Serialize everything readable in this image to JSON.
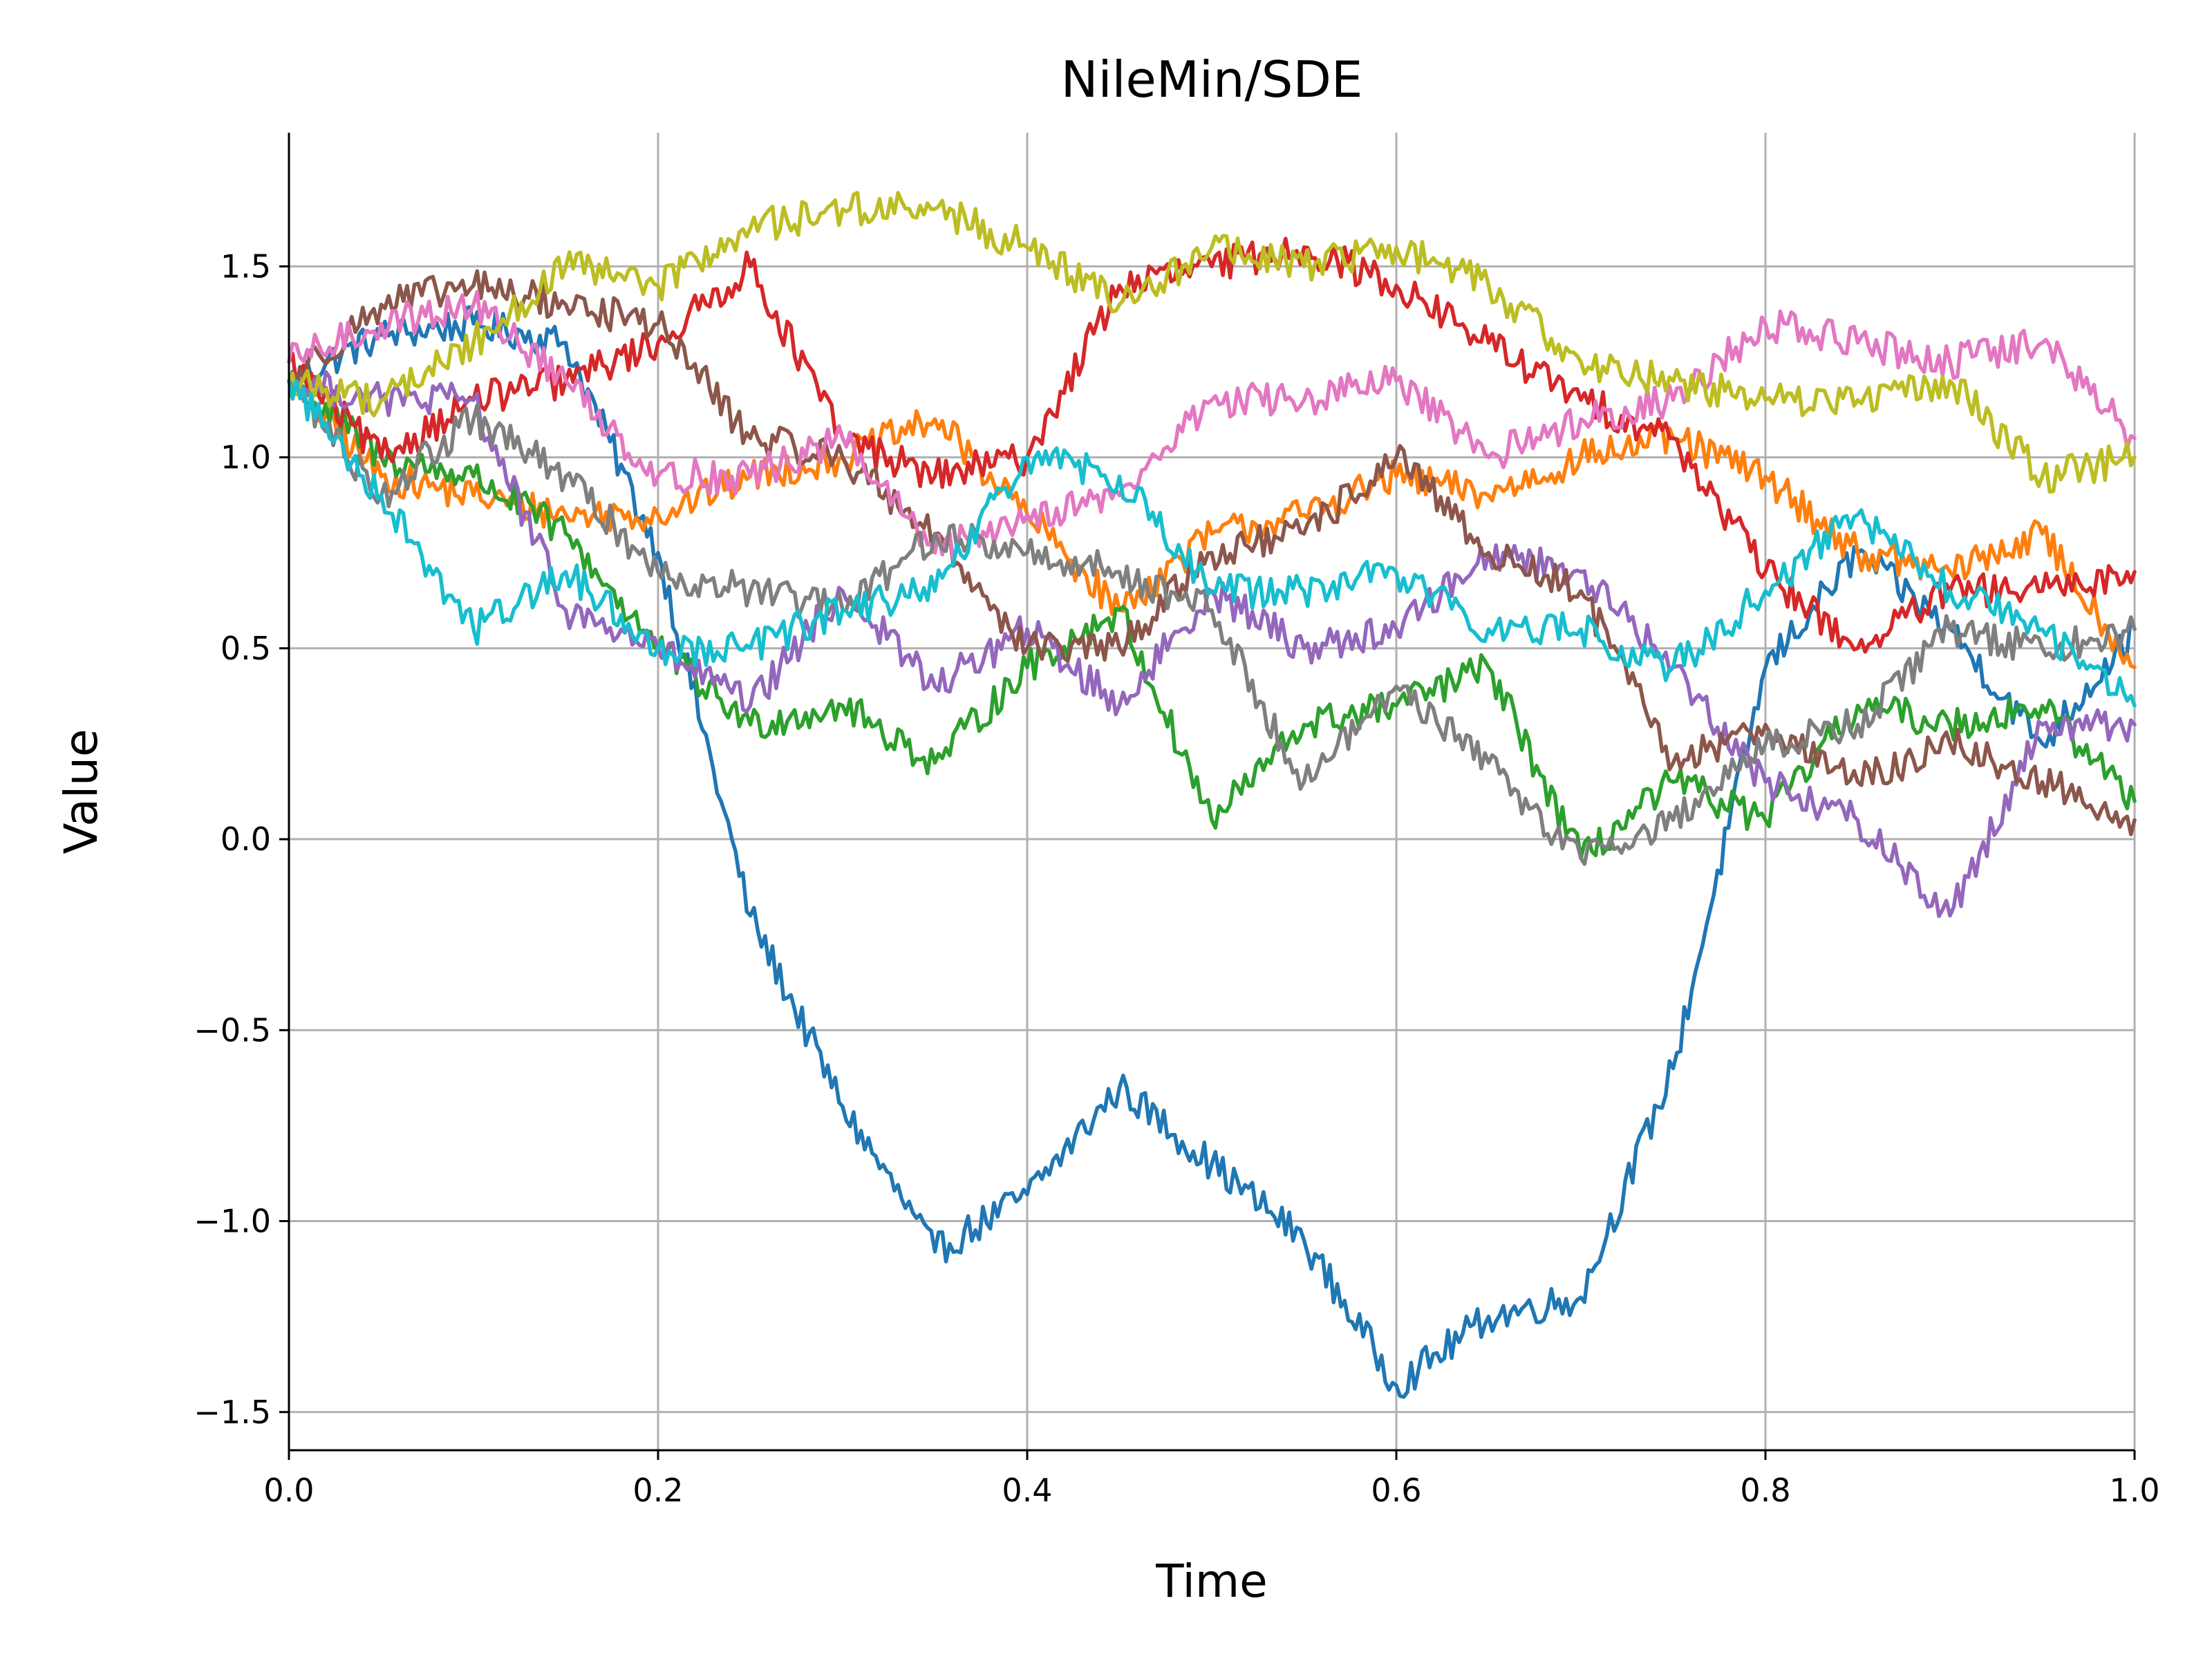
{
  "chart_data": {
    "type": "line",
    "title": "NileMin/SDE",
    "xlabel": "Time",
    "ylabel": "Value",
    "xlim": [
      0.0,
      1.0
    ],
    "ylim": [
      -1.6,
      1.85
    ],
    "grid": true,
    "legend": "none",
    "x_ticks": [
      0.0,
      0.2,
      0.4,
      0.6,
      0.8,
      1.0
    ],
    "x_tick_labels": [
      "0.0",
      "0.2",
      "0.4",
      "0.6",
      "0.8",
      "1.0"
    ],
    "y_ticks": [
      -1.5,
      -1.0,
      -0.5,
      0.0,
      0.5,
      1.0,
      1.5
    ],
    "y_tick_labels": [
      "−1.5",
      "−1.0",
      "−0.5",
      "0.0",
      "0.5",
      "1.0",
      "1.5"
    ],
    "x": [
      0.0,
      0.05,
      0.1,
      0.15,
      0.2,
      0.25,
      0.3,
      0.35,
      0.4,
      0.45,
      0.5,
      0.55,
      0.6,
      0.65,
      0.7,
      0.75,
      0.8,
      0.85,
      0.9,
      0.95,
      1.0
    ],
    "series": [
      {
        "color": "#1f77b4",
        "values": [
          1.2,
          1.32,
          1.35,
          1.3,
          0.75,
          -0.2,
          -0.7,
          -1.08,
          -0.93,
          -0.65,
          -0.85,
          -1.05,
          -1.43,
          -1.25,
          -1.2,
          -0.6,
          0.45,
          0.75,
          0.55,
          0.25,
          0.55
        ]
      },
      {
        "color": "#ff7f0e",
        "values": [
          1.2,
          0.95,
          0.9,
          0.85,
          0.85,
          0.95,
          1.0,
          1.1,
          0.85,
          0.6,
          0.8,
          0.85,
          0.95,
          0.9,
          1.0,
          1.05,
          0.95,
          0.75,
          0.7,
          0.8,
          0.45
        ]
      },
      {
        "color": "#2ca02c",
        "values": [
          1.2,
          1.0,
          0.95,
          0.8,
          0.5,
          0.3,
          0.35,
          0.2,
          0.45,
          0.6,
          0.05,
          0.3,
          0.35,
          0.45,
          -0.05,
          0.15,
          0.05,
          0.35,
          0.3,
          0.35,
          0.1
        ]
      },
      {
        "color": "#d62728",
        "values": [
          1.25,
          1.0,
          1.15,
          1.2,
          1.3,
          1.5,
          1.05,
          0.95,
          1.0,
          1.45,
          1.5,
          1.55,
          1.45,
          1.3,
          1.15,
          1.05,
          0.7,
          0.5,
          0.65,
          0.65,
          0.7
        ]
      },
      {
        "color": "#9467bd",
        "values": [
          1.2,
          1.15,
          1.15,
          0.6,
          0.5,
          0.35,
          0.65,
          0.4,
          0.55,
          0.35,
          0.65,
          0.5,
          0.55,
          0.75,
          0.7,
          0.45,
          0.15,
          0.05,
          -0.2,
          0.3,
          0.3
        ]
      },
      {
        "color": "#8c564b",
        "values": [
          1.2,
          1.4,
          1.45,
          1.4,
          1.35,
          1.05,
          1.0,
          0.8,
          0.5,
          0.5,
          0.75,
          0.8,
          1.0,
          0.75,
          0.65,
          0.2,
          0.3,
          0.15,
          0.25,
          0.15,
          0.05
        ]
      },
      {
        "color": "#e377c2",
        "values": [
          1.25,
          1.35,
          1.4,
          1.2,
          0.95,
          0.95,
          1.05,
          0.75,
          0.85,
          0.9,
          1.15,
          1.15,
          1.2,
          1.0,
          1.1,
          1.15,
          1.35,
          1.3,
          1.25,
          1.3,
          1.05
        ]
      },
      {
        "color": "#7f7f7f",
        "values": [
          1.2,
          0.9,
          1.1,
          0.95,
          0.7,
          0.65,
          0.6,
          0.8,
          0.75,
          0.7,
          0.6,
          0.15,
          0.4,
          0.2,
          -0.05,
          0.05,
          0.25,
          0.3,
          0.55,
          0.5,
          0.55
        ]
      },
      {
        "color": "#bcbd22",
        "values": [
          1.2,
          1.15,
          1.3,
          1.5,
          1.45,
          1.6,
          1.65,
          1.65,
          1.55,
          1.4,
          1.55,
          1.5,
          1.55,
          1.45,
          1.25,
          1.2,
          1.15,
          1.15,
          1.2,
          0.95,
          1.0
        ]
      },
      {
        "color": "#17becf",
        "values": [
          1.2,
          0.9,
          0.55,
          0.7,
          0.5,
          0.5,
          0.6,
          0.65,
          1.0,
          0.95,
          0.65,
          0.65,
          0.7,
          0.55,
          0.55,
          0.45,
          0.65,
          0.85,
          0.65,
          0.55,
          0.35
        ]
      }
    ]
  }
}
